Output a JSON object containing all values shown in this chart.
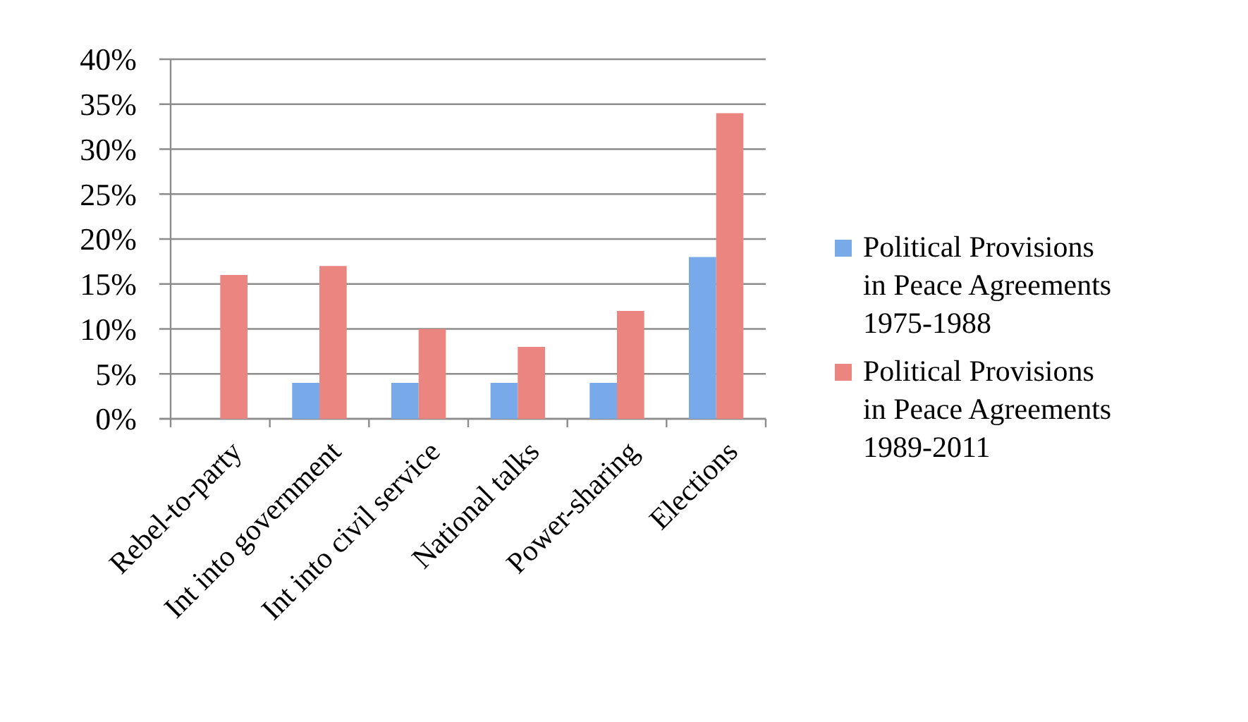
{
  "chart_data": {
    "type": "bar",
    "categories": [
      "Rebel-to-party",
      "Int into government",
      "Int into civil service",
      "National talks",
      "Power-sharing",
      "Elections"
    ],
    "series": [
      {
        "name": "Political Provisions in Peace Agreements 1975-1988",
        "color": "#78aaea",
        "values": [
          0,
          4,
          4,
          4,
          4,
          18
        ]
      },
      {
        "name": "Political Provisions in Peace Agreements 1989-2011",
        "color": "#ea857f",
        "values": [
          16,
          17,
          10,
          8,
          12,
          34
        ]
      }
    ],
    "ylim": [
      0,
      40
    ],
    "yticks": [
      {
        "value": 0,
        "label": "0%"
      },
      {
        "value": 5,
        "label": "5%"
      },
      {
        "value": 10,
        "label": "10%"
      },
      {
        "value": 15,
        "label": "15%"
      },
      {
        "value": 20,
        "label": "20%"
      },
      {
        "value": 25,
        "label": "25%"
      },
      {
        "value": 30,
        "label": "30%"
      },
      {
        "value": 35,
        "label": "35%"
      },
      {
        "value": 40,
        "label": "40%"
      }
    ],
    "grid": "y",
    "legend": "right"
  }
}
